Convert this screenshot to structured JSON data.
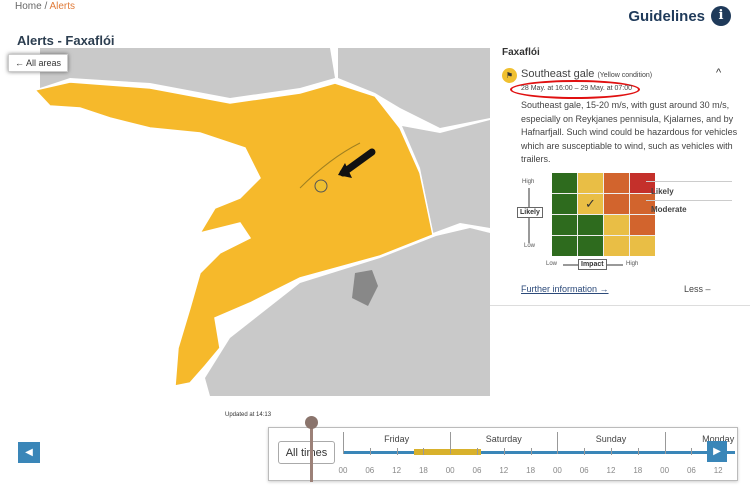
{
  "breadcrumb": {
    "home": "Home /",
    "current": "Alerts"
  },
  "header": {
    "guidelines": "Guidelines",
    "info_icon": "i"
  },
  "page_title": "Alerts - Faxaflói",
  "map": {
    "all_areas": "← All areas",
    "colors": {
      "alert": "#f6b92b",
      "land": "#c9c9c9",
      "sea": "#ffffff"
    }
  },
  "alert": {
    "region": "Faxaflói",
    "title": "Southeast gale",
    "condition": "(Yellow condition)",
    "time": "28 May. at 16:00 – 29 May. at 07:00",
    "description": "Southeast gale, 15-20 m/s, with gust around 30 m/s, especially on Reykjanes pennisula, Kjalarnes, and by Hafnarfjall. Such wind could be hazardous for vehicles which are susceptiable to wind, such as vehicles with trailers.",
    "likelihood": "Likely",
    "impact": "Moderate",
    "matrix_labels": {
      "high": "High",
      "low": "Low",
      "likely": "Likely",
      "impact": "Impact",
      "impact_low": "Low",
      "impact_high": "High"
    },
    "selected_cell": {
      "likelihood_level": 3,
      "impact_level": 2
    },
    "further": "Further information →",
    "less": "Less –"
  },
  "timeline": {
    "updated": "Updated at 14:13",
    "all_times": "All times",
    "days": [
      "Friday",
      "Saturday",
      "Sunday",
      "Monday"
    ],
    "hours": [
      "00",
      "06",
      "12",
      "18",
      "00",
      "06",
      "12",
      "18",
      "00",
      "06",
      "12",
      "18",
      "00",
      "06",
      "12"
    ],
    "alert_window": "28 May. at 16:00 – 29 May. at 07:00"
  }
}
